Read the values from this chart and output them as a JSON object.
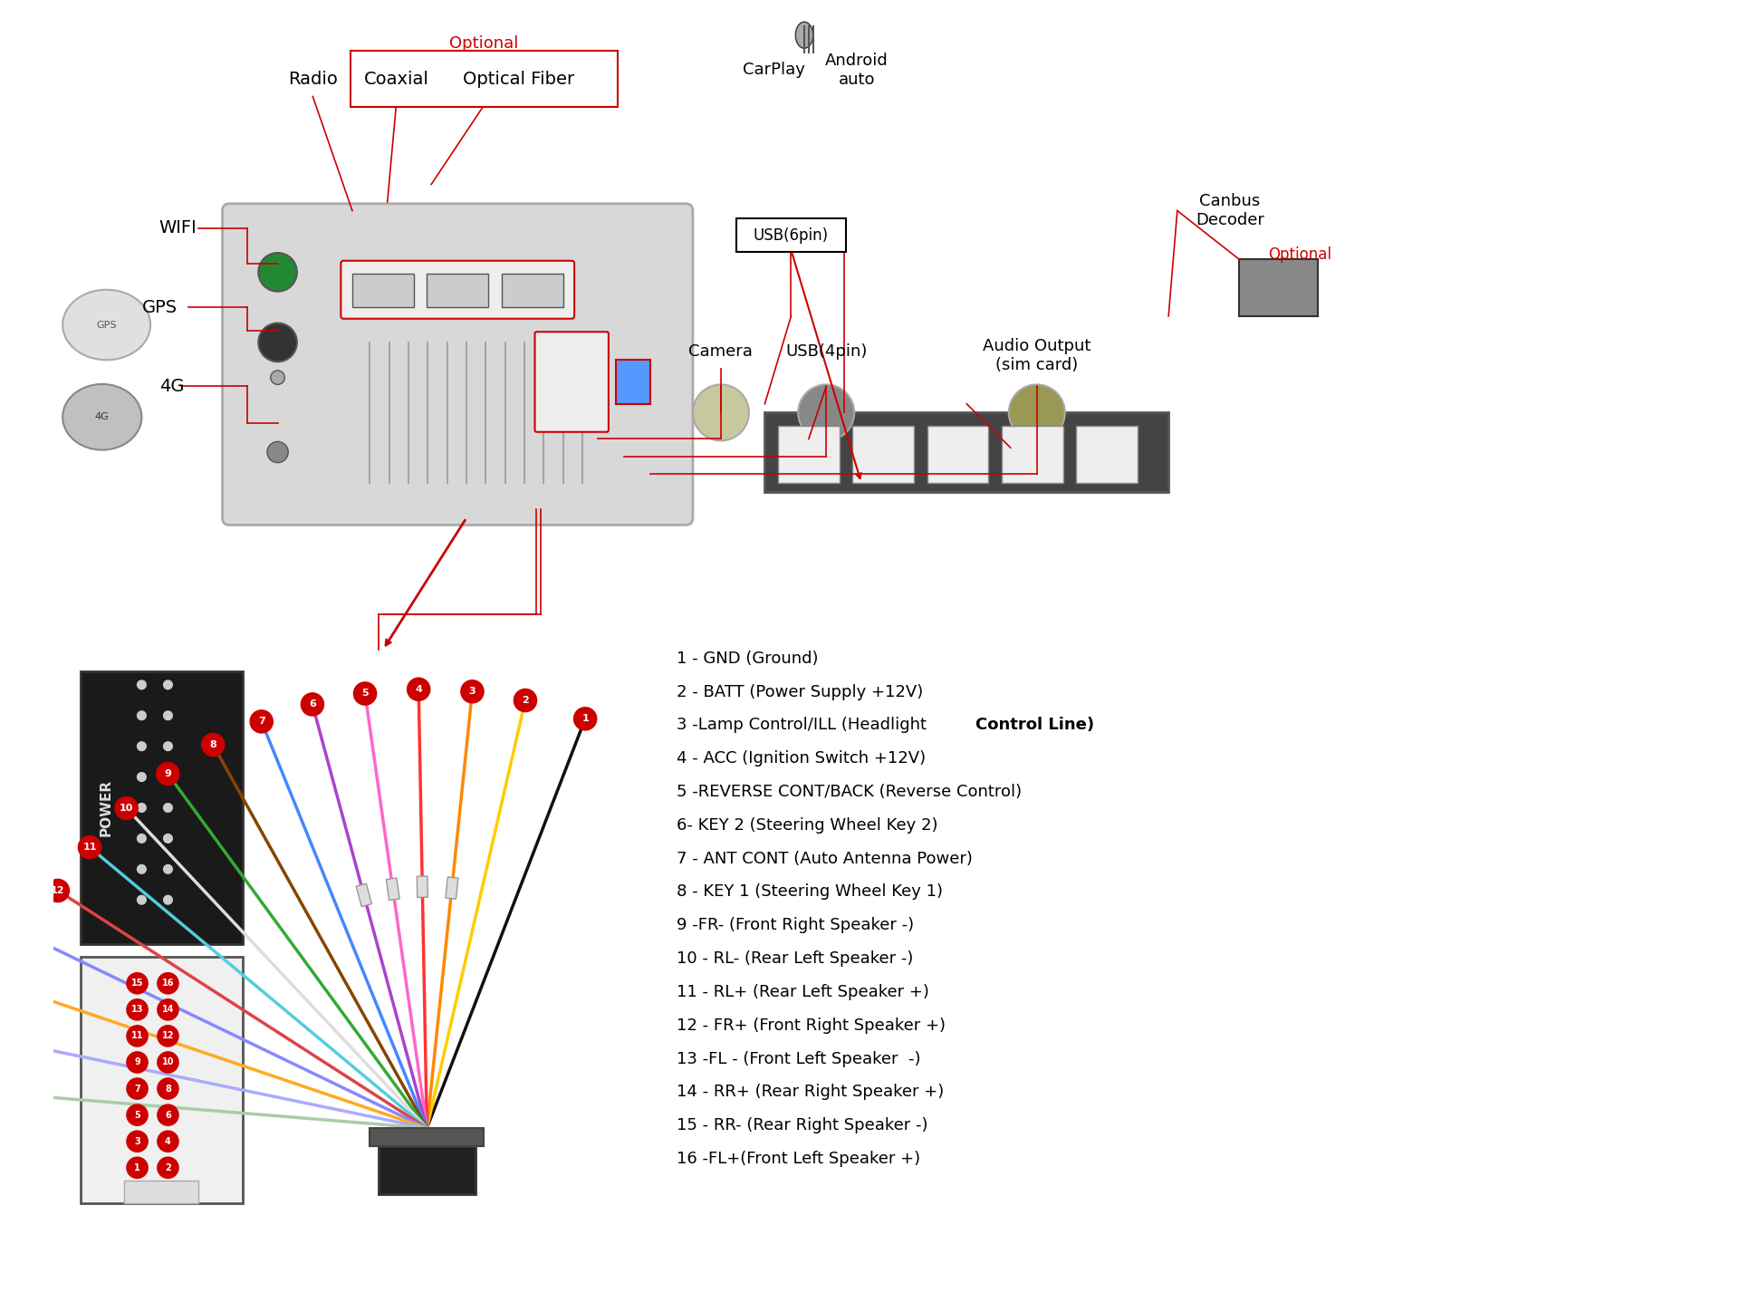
{
  "bg_color": "#ffffff",
  "title_font": 13,
  "wire_labels": [
    "1 - GND (Ground)",
    "2 - BATT (Power Supply +12V)",
    "3 -Lamp Control/ILL (Headlight Control Line)",
    "4 - ACC (Ignition Switch +12V)",
    "5 -REVERSE CONT/BACK (Reverse Control)",
    "6- KEY 2 (Steering Wheel Key 2)",
    "7 - ANT CONT (Auto Antenna Power)",
    "8 - KEY 1 (Steering Wheel Key 1)",
    "9 -FR- (Front Right Speaker -)",
    "10 - RL- (Rear Left Speaker -)",
    "11 - RL+ (Rear Left Speaker +)",
    "12 - FR+ (Front Right Speaker +)",
    "13 -FL - (Front Left Speaker  -)",
    "14 - RR+ (Rear Right Speaker +)",
    "15 - RR- (Rear Right Speaker -)",
    "16 -FL+(Front Left Speaker +)"
  ],
  "wire_bold_indices": [
    3
  ],
  "optional_label": "Optional",
  "coaxial_label": "Coaxial",
  "optical_label": "Optical Fiber",
  "radio_label": "Radio",
  "wifi_label": "WIFI",
  "gps_label": "GPS",
  "fg_label": "4G",
  "carplay_label": "CarPlay",
  "android_label": "Android\nauto",
  "usb6_label": "USB(6pin)",
  "canbus_label": "Canbus\nDecoder",
  "canbus_optional": "Optional",
  "camera_label": "Camera",
  "usb4_label": "USB(4pin)",
  "audio_label": "Audio Output\n(sim card)",
  "red_color": "#cc0000",
  "box_red": "#cc0000",
  "text_black": "#000000",
  "circle_red": "#cc0000",
  "circle_text": "#ffffff",
  "pin_diagram_label": "POWER"
}
